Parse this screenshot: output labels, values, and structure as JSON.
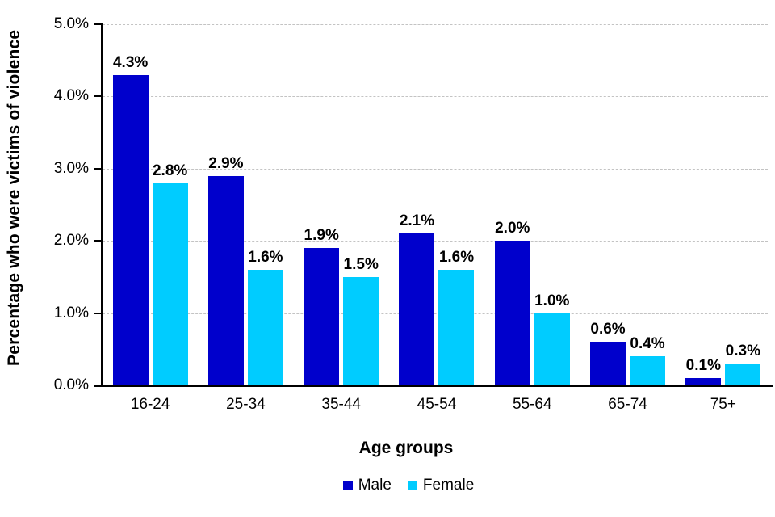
{
  "chart_data": {
    "type": "bar",
    "title": "",
    "categories": [
      "16-24",
      "25-34",
      "35-44",
      "45-54",
      "55-64",
      "65-74",
      "75+"
    ],
    "series": [
      {
        "name": "Male",
        "color": "#0000CC",
        "values": [
          4.3,
          2.9,
          1.9,
          2.1,
          2.0,
          0.6,
          0.1
        ],
        "labels": [
          "4.3%",
          "2.9%",
          "1.9%",
          "2.1%",
          "2.0%",
          "0.6%",
          "0.1%"
        ]
      },
      {
        "name": "Female",
        "color": "#00CCFF",
        "values": [
          2.8,
          1.6,
          1.5,
          1.6,
          1.0,
          0.4,
          0.3
        ],
        "labels": [
          "2.8%",
          "1.6%",
          "1.5%",
          "1.6%",
          "1.0%",
          "0.4%",
          "0.3%"
        ]
      }
    ],
    "xlabel": "Age groups",
    "ylabel": "Percentage who were victims of violence",
    "ylim": [
      0,
      5
    ],
    "ytick_values": [
      0,
      1,
      2,
      3,
      4,
      5
    ],
    "ytick_labels": [
      "0.0%",
      "1.0%",
      "2.0%",
      "3.0%",
      "4.0%",
      "5.0%"
    ],
    "grid": "horizontal-dashed",
    "legend_position": "bottom",
    "colors": {
      "axis": "#000000",
      "gridline": "#C3C3C3",
      "data_label_text": "#000000"
    }
  }
}
